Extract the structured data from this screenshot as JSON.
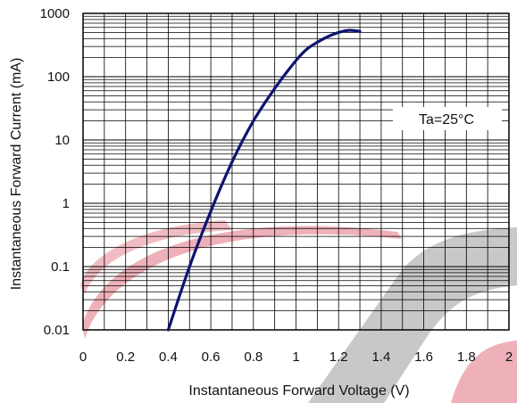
{
  "chart_data": {
    "type": "line",
    "xlabel": "Instantaneous Forward Voltage (V)",
    "ylabel": "Instantaneous Forward Current (mA)",
    "xlim": [
      0,
      2
    ],
    "ylim": [
      0.01,
      1000
    ],
    "yscale": "log",
    "x_ticks": [
      "0",
      "0.2",
      "0.4",
      "0.6",
      "0.8",
      "1",
      "1.2",
      "1.4",
      "1.6",
      "1.8",
      "2"
    ],
    "x_tick_values": [
      0,
      0.2,
      0.4,
      0.6,
      0.8,
      1.0,
      1.2,
      1.4,
      1.6,
      1.8,
      2.0
    ],
    "y_ticks": [
      "0.01",
      "0.1",
      "1",
      "10",
      "100",
      "1000"
    ],
    "y_tick_values": [
      0.01,
      0.1,
      1,
      10,
      100,
      1000
    ],
    "grid": true,
    "annotation": "Ta=25°C",
    "series": [
      {
        "color": "#0d1470",
        "x": [
          0.4,
          0.5,
          0.6,
          0.7,
          0.8,
          0.9,
          1.0,
          1.05,
          1.1,
          1.15,
          1.2,
          1.25,
          1.3
        ],
        "y": [
          0.01,
          0.1,
          0.75,
          4.5,
          20,
          65,
          180,
          270,
          350,
          430,
          500,
          540,
          520
        ]
      }
    ]
  }
}
